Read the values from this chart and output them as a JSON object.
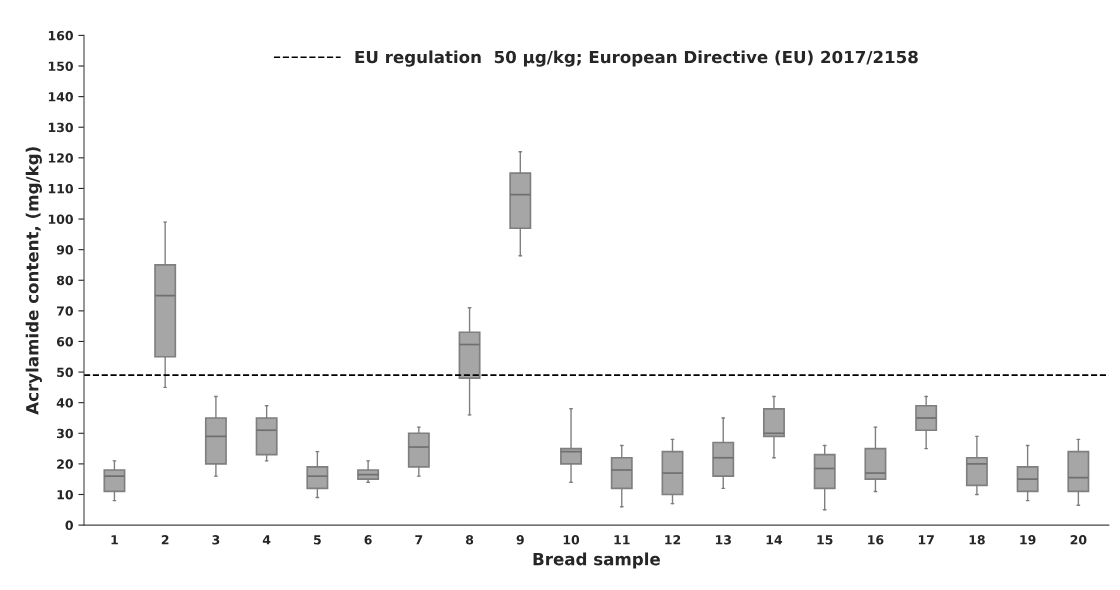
{
  "chart_data": {
    "type": "box",
    "xlabel": "Bread sample",
    "ylabel": "Acrylamide content, (mg/kg)",
    "categories": [
      "1",
      "2",
      "3",
      "4",
      "5",
      "6",
      "7",
      "8",
      "9",
      "10",
      "11",
      "12",
      "13",
      "14",
      "15",
      "16",
      "17",
      "18",
      "19",
      "20"
    ],
    "boxes": [
      {
        "low": 8,
        "q1": 11,
        "median": 16,
        "q3": 18,
        "high": 21
      },
      {
        "low": 45,
        "q1": 55,
        "median": 75,
        "q3": 85,
        "high": 99
      },
      {
        "low": 16,
        "q1": 20,
        "median": 29,
        "q3": 35,
        "high": 42
      },
      {
        "low": 21,
        "q1": 23,
        "median": 31,
        "q3": 35,
        "high": 39
      },
      {
        "low": 9,
        "q1": 12,
        "median": 16,
        "q3": 19,
        "high": 24
      },
      {
        "low": 14,
        "q1": 15,
        "median": 16.5,
        "q3": 18,
        "high": 21
      },
      {
        "low": 16,
        "q1": 19,
        "median": 25.5,
        "q3": 30,
        "high": 32
      },
      {
        "low": 36,
        "q1": 48,
        "median": 59,
        "q3": 63,
        "high": 71
      },
      {
        "low": 88,
        "q1": 97,
        "median": 108,
        "q3": 115,
        "high": 122
      },
      {
        "low": 14,
        "q1": 20,
        "median": 24,
        "q3": 25,
        "high": 38
      },
      {
        "low": 6,
        "q1": 12,
        "median": 18,
        "q3": 22,
        "high": 26
      },
      {
        "low": 7,
        "q1": 10,
        "median": 17,
        "q3": 24,
        "high": 28
      },
      {
        "low": 12,
        "q1": 16,
        "median": 22,
        "q3": 27,
        "high": 35
      },
      {
        "low": 22,
        "q1": 29,
        "median": 30,
        "q3": 38,
        "high": 42
      },
      {
        "low": 5,
        "q1": 12,
        "median": 18.5,
        "q3": 23,
        "high": 26
      },
      {
        "low": 11,
        "q1": 15,
        "median": 17,
        "q3": 25,
        "high": 32
      },
      {
        "low": 25,
        "q1": 31,
        "median": 35,
        "q3": 39,
        "high": 42
      },
      {
        "low": 10,
        "q1": 13,
        "median": 20,
        "q3": 22,
        "high": 29
      },
      {
        "low": 8,
        "q1": 11,
        "median": 15,
        "q3": 19,
        "high": 26
      },
      {
        "low": 6.5,
        "q1": 11,
        "median": 15.5,
        "q3": 24,
        "high": 28
      }
    ],
    "color": "#a6a6a6",
    "ylim": [
      0,
      160
    ],
    "yticks": [
      0,
      10,
      20,
      30,
      40,
      50,
      60,
      70,
      80,
      90,
      100,
      110,
      120,
      130,
      140,
      150,
      160
    ],
    "ref_lines": [
      {
        "axis": "y",
        "value": 49,
        "label": "EU regulation  50 μg/kg; European Directive (EU) 2017/2158",
        "color": "#000000",
        "line_style": "dashed"
      }
    ],
    "legend": "top",
    "grid": false
  }
}
